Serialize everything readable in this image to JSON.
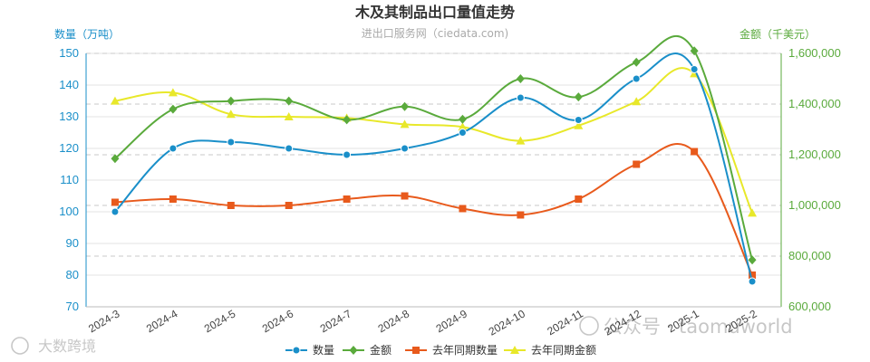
{
  "chart_data": {
    "type": "line",
    "title": "木及其制品出口量值走势",
    "subtitle": "进出口服务网（ciedata.com)",
    "left_axis": {
      "name": "数量（万吨）",
      "min": 70,
      "max": 150,
      "ticks": [
        70,
        80,
        90,
        100,
        110,
        120,
        130,
        140,
        150
      ],
      "color": "#1a8fc9"
    },
    "right_axis": {
      "name": "金额（千美元）",
      "min": 600000,
      "max": 1600000,
      "ticks": [
        "600,000",
        "800,000",
        "1,000,000",
        "1,200,000",
        "1,400,000",
        "1,600,000"
      ],
      "color": "#5aaa3c"
    },
    "categories": [
      "2024-3",
      "2024-4",
      "2024-5",
      "2024-6",
      "2024-7",
      "2024-8",
      "2024-9",
      "2024-10",
      "2024-11",
      "2024-12",
      "2025-1",
      "2025-2"
    ],
    "series": [
      {
        "name": "数量",
        "axis": "left",
        "color": "#1a8fc9",
        "marker": "circle",
        "values": [
          100,
          120,
          122,
          120,
          118,
          120,
          125,
          136,
          129,
          142,
          145,
          78
        ]
      },
      {
        "name": "金额",
        "axis": "right",
        "color": "#5aaa3c",
        "marker": "diamond",
        "values": [
          1185000,
          1380000,
          1412000,
          1412000,
          1338000,
          1390000,
          1340000,
          1500000,
          1428000,
          1565000,
          1610000,
          785000
        ]
      },
      {
        "name": "去年同期数量",
        "axis": "left",
        "color": "#e85a1c",
        "marker": "square",
        "values": [
          103,
          104,
          102,
          102,
          104,
          105,
          101,
          99,
          104,
          115,
          119,
          80
        ]
      },
      {
        "name": "去年同期金额",
        "axis": "right",
        "color": "#e8e82a",
        "marker": "triangle",
        "values": [
          1412000,
          1445000,
          1360000,
          1350000,
          1345000,
          1320000,
          1310000,
          1255000,
          1315000,
          1410000,
          1520000,
          970000
        ]
      }
    ],
    "legend_position": "bottom-center"
  },
  "watermarks": {
    "left": "大数跨境",
    "right": "公众号 · taomuworld"
  }
}
